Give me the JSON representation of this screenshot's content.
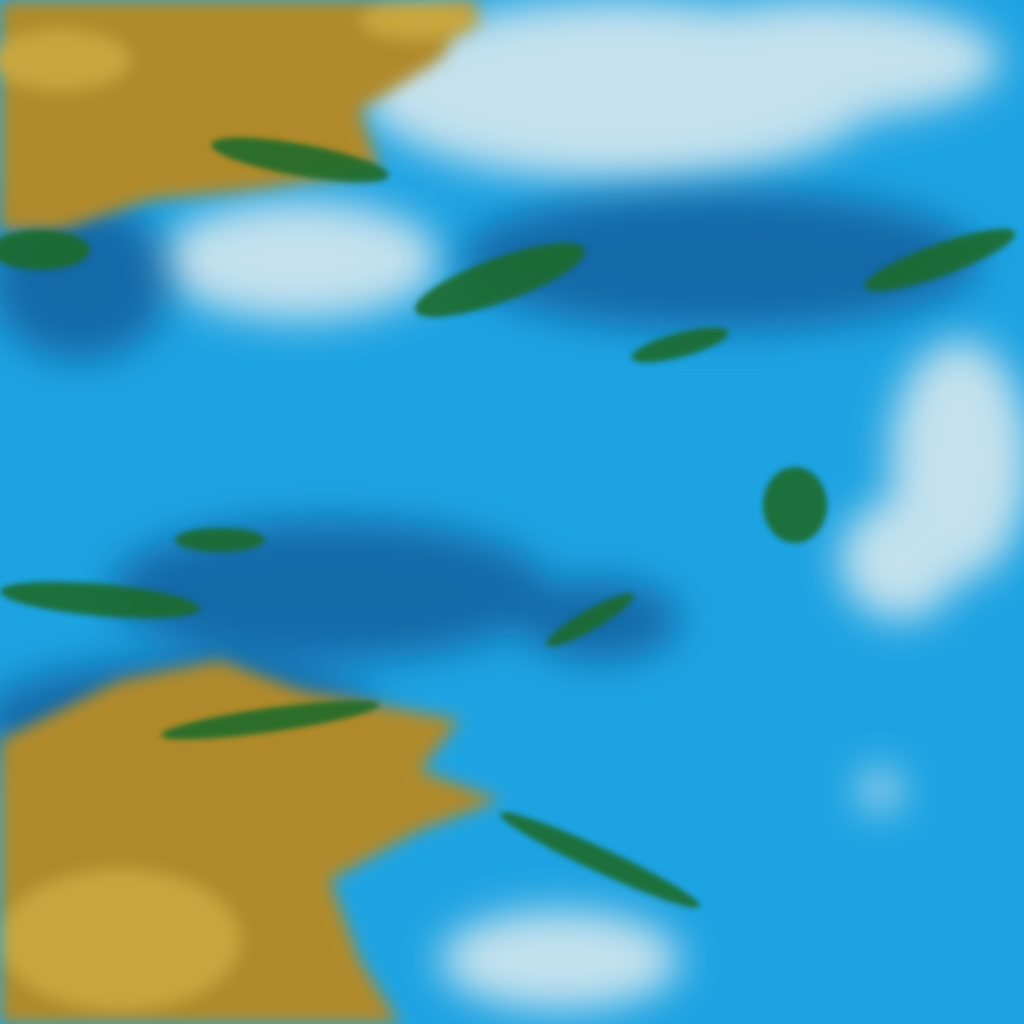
{
  "image": {
    "kind": "false-color satellite imagery",
    "colors": {
      "water": "#1ea3e2",
      "water_light": "#3db8ee",
      "cloud": "#d6e8ef",
      "land": "#b08a2a",
      "land_light": "#c9a63e",
      "vegetation": "#1f6b2a",
      "shadow": "#0c3a78"
    }
  }
}
